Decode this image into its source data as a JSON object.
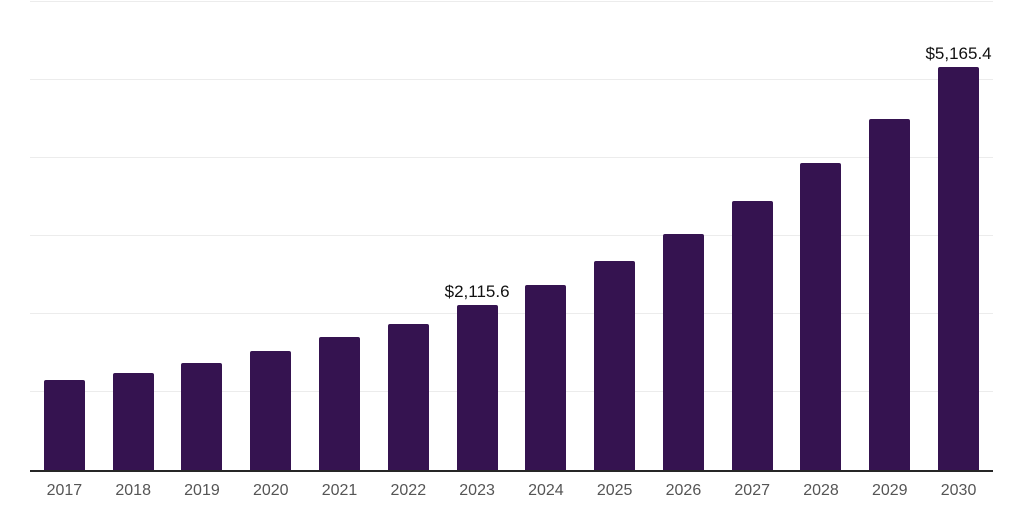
{
  "chart_data": {
    "type": "bar",
    "title": "",
    "xlabel": "",
    "ylabel": "",
    "categories": [
      "2017",
      "2018",
      "2019",
      "2020",
      "2021",
      "2022",
      "2023",
      "2024",
      "2025",
      "2026",
      "2027",
      "2028",
      "2029",
      "2030"
    ],
    "values": [
      1150,
      1245,
      1370,
      1530,
      1700,
      1875,
      2115.6,
      2370,
      2685,
      3030,
      3450,
      3940,
      4500,
      5165.4
    ],
    "data_labels": [
      {
        "category": "2023",
        "text": "$2,115.6"
      },
      {
        "category": "2030",
        "text": "$5,165.4"
      }
    ],
    "ylim": [
      0,
      6000
    ],
    "gridline_values": [
      1000,
      2000,
      3000,
      4000,
      5000,
      6000
    ],
    "grid": true,
    "legend": "none",
    "colors": {
      "bar": "#351350",
      "gridline": "#ececec",
      "axis_line": "#262626",
      "x_tick_label": "#555555",
      "data_label": "#111111",
      "background": "#ffffff"
    }
  }
}
